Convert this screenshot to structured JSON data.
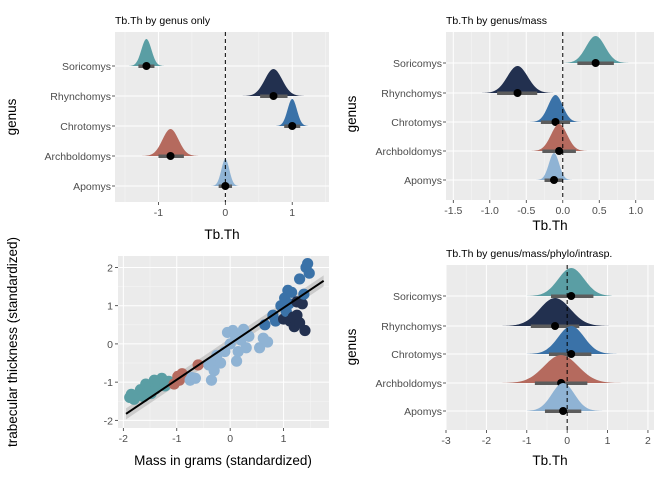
{
  "chart_data": [
    {
      "type": "ridgeline",
      "title": "Tb.Th by genus only",
      "xlabel": "Tb.Th",
      "ylabel": "genus",
      "xlim": [
        -1.65,
        1.55
      ],
      "xticks": [
        -1,
        0,
        1
      ],
      "categories": [
        "Soricomys",
        "Rhynchomys",
        "Chrotomys",
        "Archboldomys",
        "Apomys"
      ],
      "reference_line": 0,
      "series": [
        {
          "category": "Soricomys",
          "color": "#5a9ea4",
          "center": -1.18,
          "sd": 0.075,
          "lo": -1.55,
          "hi": -0.9,
          "interval": [
            -1.3,
            -1.06
          ],
          "point": -1.18
        },
        {
          "category": "Rhynchomys",
          "color": "#22304f",
          "center": 0.72,
          "sd": 0.13,
          "lo": 0.1,
          "hi": 1.45,
          "interval": [
            0.52,
            0.93
          ],
          "point": 0.72
        },
        {
          "category": "Chrotomys",
          "color": "#3a72a8",
          "center": 1.0,
          "sd": 0.07,
          "lo": 0.65,
          "hi": 1.3,
          "interval": [
            0.88,
            1.12
          ],
          "point": 1.0
        },
        {
          "category": "Archboldomys",
          "color": "#b56a5e",
          "center": -0.82,
          "sd": 0.12,
          "lo": -1.45,
          "hi": -0.3,
          "interval": [
            -1.0,
            -0.62
          ],
          "point": -0.82
        },
        {
          "category": "Apomys",
          "color": "#8fb3d4",
          "center": 0.0,
          "sd": 0.06,
          "lo": -0.32,
          "hi": 0.32,
          "interval": [
            -0.1,
            0.1
          ],
          "point": 0.0
        }
      ]
    },
    {
      "type": "ridgeline",
      "title": "Tb.Th by genus/mass",
      "xlabel": "Tb.Th",
      "ylabel": "genus",
      "xlim": [
        -1.6,
        1.25
      ],
      "xticks": [
        -1.5,
        -1.0,
        -0.5,
        0.0,
        0.5,
        1.0
      ],
      "xtick_labels": [
        "-1.5",
        "-1.0",
        "-0.5",
        "0.0",
        "0.5",
        "1.0"
      ],
      "categories": [
        "Soricomys",
        "Rhynchomys",
        "Chrotomys",
        "Archboldomys",
        "Apomys"
      ],
      "reference_line": 0,
      "series": [
        {
          "category": "Soricomys",
          "color": "#5a9ea4",
          "center": 0.45,
          "sd": 0.13,
          "lo": 0.0,
          "hi": 0.95,
          "interval": [
            0.2,
            0.7
          ],
          "point": 0.45
        },
        {
          "category": "Rhynchomys",
          "color": "#22304f",
          "center": -0.62,
          "sd": 0.14,
          "lo": -1.15,
          "hi": -0.1,
          "interval": [
            -0.9,
            -0.35
          ],
          "point": -0.62
        },
        {
          "category": "Chrotomys",
          "color": "#3a72a8",
          "center": -0.1,
          "sd": 0.1,
          "lo": -0.5,
          "hi": 0.3,
          "interval": [
            -0.3,
            0.1
          ],
          "point": -0.1
        },
        {
          "category": "Archboldomys",
          "color": "#b56a5e",
          "center": -0.05,
          "sd": 0.11,
          "lo": -0.5,
          "hi": 0.4,
          "interval": [
            -0.28,
            0.18
          ],
          "point": -0.05
        },
        {
          "category": "Apomys",
          "color": "#8fb3d4",
          "center": -0.12,
          "sd": 0.07,
          "lo": -0.4,
          "hi": 0.15,
          "interval": [
            -0.25,
            0.0
          ],
          "point": -0.12
        }
      ]
    },
    {
      "type": "scatter",
      "xlabel": "Mass in grams (standardized)",
      "ylabel": "trabecular thickness (standardized)",
      "xlim": [
        -2.1,
        1.85
      ],
      "ylim": [
        -2.2,
        2.3
      ],
      "xticks": [
        -2,
        -1,
        0,
        1
      ],
      "yticks": [
        -2,
        -1,
        0,
        1,
        2
      ],
      "regression_line": {
        "x": [
          -1.95,
          1.75
        ],
        "y": [
          -1.83,
          1.65
        ],
        "band": 0.09
      },
      "points": [
        {
          "x": -1.88,
          "y": -1.4,
          "color": "#5a9ea4"
        },
        {
          "x": -1.85,
          "y": -1.32,
          "color": "#5a9ea4"
        },
        {
          "x": -1.8,
          "y": -1.45,
          "color": "#5a9ea4"
        },
        {
          "x": -1.72,
          "y": -1.35,
          "color": "#5a9ea4"
        },
        {
          "x": -1.68,
          "y": -1.2,
          "color": "#5a9ea4"
        },
        {
          "x": -1.62,
          "y": -1.38,
          "color": "#5a9ea4"
        },
        {
          "x": -1.58,
          "y": -1.05,
          "color": "#5a9ea4"
        },
        {
          "x": -1.55,
          "y": -1.25,
          "color": "#5a9ea4"
        },
        {
          "x": -1.5,
          "y": -1.12,
          "color": "#5a9ea4"
        },
        {
          "x": -1.48,
          "y": -1.3,
          "color": "#5a9ea4"
        },
        {
          "x": -1.42,
          "y": -0.95,
          "color": "#5a9ea4"
        },
        {
          "x": -1.4,
          "y": -1.18,
          "color": "#5a9ea4"
        },
        {
          "x": -1.35,
          "y": -1.02,
          "color": "#5a9ea4"
        },
        {
          "x": -1.28,
          "y": -0.9,
          "color": "#5a9ea4"
        },
        {
          "x": -1.22,
          "y": -1.1,
          "color": "#5a9ea4"
        },
        {
          "x": -1.15,
          "y": -0.98,
          "color": "#5a9ea4"
        },
        {
          "x": -1.05,
          "y": -1.05,
          "color": "#b56a5e"
        },
        {
          "x": -0.98,
          "y": -0.85,
          "color": "#b56a5e"
        },
        {
          "x": -0.95,
          "y": -0.95,
          "color": "#b56a5e"
        },
        {
          "x": -0.9,
          "y": -0.78,
          "color": "#b56a5e"
        },
        {
          "x": -0.75,
          "y": -0.95,
          "color": "#8fb3d4"
        },
        {
          "x": -0.72,
          "y": -0.88,
          "color": "#8fb3d4"
        },
        {
          "x": -0.65,
          "y": -0.9,
          "color": "#8fb3d4"
        },
        {
          "x": -0.6,
          "y": -0.55,
          "color": "#b56a5e"
        },
        {
          "x": -0.4,
          "y": -0.55,
          "color": "#8fb3d4"
        },
        {
          "x": -0.35,
          "y": -0.95,
          "color": "#8fb3d4"
        },
        {
          "x": -0.32,
          "y": -0.45,
          "color": "#8fb3d4"
        },
        {
          "x": -0.3,
          "y": -0.7,
          "color": "#8fb3d4"
        },
        {
          "x": -0.25,
          "y": -0.3,
          "color": "#8fb3d4"
        },
        {
          "x": -0.18,
          "y": -0.5,
          "color": "#8fb3d4"
        },
        {
          "x": -0.1,
          "y": -0.2,
          "color": "#8fb3d4"
        },
        {
          "x": -0.05,
          "y": 0.3,
          "color": "#8fb3d4"
        },
        {
          "x": 0.0,
          "y": 0.0,
          "color": "#8fb3d4"
        },
        {
          "x": 0.05,
          "y": 0.35,
          "color": "#8fb3d4"
        },
        {
          "x": 0.1,
          "y": 0.2,
          "color": "#8fb3d4"
        },
        {
          "x": 0.12,
          "y": -0.45,
          "color": "#8fb3d4"
        },
        {
          "x": 0.15,
          "y": -0.2,
          "color": "#8fb3d4"
        },
        {
          "x": 0.2,
          "y": 0.1,
          "color": "#8fb3d4"
        },
        {
          "x": 0.25,
          "y": 0.38,
          "color": "#8fb3d4"
        },
        {
          "x": 0.3,
          "y": -0.1,
          "color": "#8fb3d4"
        },
        {
          "x": 0.35,
          "y": 0.2,
          "color": "#8fb3d4"
        },
        {
          "x": 0.55,
          "y": -0.1,
          "color": "#8fb3d4"
        },
        {
          "x": 0.62,
          "y": 0.15,
          "color": "#8fb3d4"
        },
        {
          "x": 0.7,
          "y": 0.05,
          "color": "#8fb3d4"
        },
        {
          "x": 0.65,
          "y": 0.5,
          "color": "#3a72a8"
        },
        {
          "x": 0.8,
          "y": 0.75,
          "color": "#3a72a8"
        },
        {
          "x": 0.85,
          "y": 0.6,
          "color": "#3a72a8"
        },
        {
          "x": 0.95,
          "y": 1.0,
          "color": "#3a72a8"
        },
        {
          "x": 1.0,
          "y": 0.65,
          "color": "#22304f"
        },
        {
          "x": 1.02,
          "y": 1.2,
          "color": "#3a72a8"
        },
        {
          "x": 1.05,
          "y": 0.85,
          "color": "#3a72a8"
        },
        {
          "x": 1.08,
          "y": 1.4,
          "color": "#3a72a8"
        },
        {
          "x": 1.1,
          "y": 1.05,
          "color": "#3a72a8"
        },
        {
          "x": 1.12,
          "y": 0.6,
          "color": "#22304f"
        },
        {
          "x": 1.15,
          "y": 1.35,
          "color": "#3a72a8"
        },
        {
          "x": 1.18,
          "y": 0.7,
          "color": "#22304f"
        },
        {
          "x": 1.2,
          "y": 0.45,
          "color": "#22304f"
        },
        {
          "x": 1.25,
          "y": 1.1,
          "color": "#22304f"
        },
        {
          "x": 1.25,
          "y": 0.75,
          "color": "#22304f"
        },
        {
          "x": 1.3,
          "y": 0.55,
          "color": "#22304f"
        },
        {
          "x": 1.3,
          "y": 1.7,
          "color": "#3a72a8"
        },
        {
          "x": 1.35,
          "y": 1.05,
          "color": "#22304f"
        },
        {
          "x": 1.38,
          "y": 1.3,
          "color": "#3a72a8"
        },
        {
          "x": 1.4,
          "y": 0.35,
          "color": "#22304f"
        },
        {
          "x": 1.42,
          "y": 2.0,
          "color": "#3a72a8"
        },
        {
          "x": 1.45,
          "y": 2.1,
          "color": "#3a72a8"
        },
        {
          "x": 1.48,
          "y": 1.85,
          "color": "#3a72a8"
        }
      ]
    },
    {
      "type": "ridgeline",
      "title": "Tb.Th by genus/mass/phylo/intrasp.",
      "xlabel": "Tb.Th",
      "ylabel": "genus",
      "xlim": [
        -3.0,
        2.15
      ],
      "xticks": [
        -3,
        -2,
        -1,
        0,
        1,
        2
      ],
      "categories": [
        "Soricomys",
        "Rhynchomys",
        "Chrotomys",
        "Archboldomys",
        "Apomys"
      ],
      "reference_line": 0,
      "series": [
        {
          "category": "Soricomys",
          "color": "#5a9ea4",
          "center": 0.1,
          "sd": 0.32,
          "lo": -1.0,
          "hi": 1.1,
          "interval": [
            -0.4,
            0.65
          ],
          "point": 0.1
        },
        {
          "category": "Rhynchomys",
          "color": "#22304f",
          "center": -0.3,
          "sd": 0.38,
          "lo": -1.6,
          "hi": 1.3,
          "interval": [
            -0.9,
            0.3
          ],
          "point": -0.3
        },
        {
          "category": "Chrotomys",
          "color": "#3a72a8",
          "center": 0.1,
          "sd": 0.32,
          "lo": -1.0,
          "hi": 1.45,
          "interval": [
            -0.45,
            0.6
          ],
          "point": 0.1
        },
        {
          "category": "Archboldomys",
          "color": "#b56a5e",
          "center": -0.15,
          "sd": 0.42,
          "lo": -2.7,
          "hi": 1.8,
          "interval": [
            -0.8,
            0.5
          ],
          "point": -0.15
        },
        {
          "category": "Apomys",
          "color": "#8fb3d4",
          "center": -0.1,
          "sd": 0.28,
          "lo": -1.0,
          "hi": 0.9,
          "interval": [
            -0.55,
            0.35
          ],
          "point": -0.1
        }
      ]
    }
  ]
}
